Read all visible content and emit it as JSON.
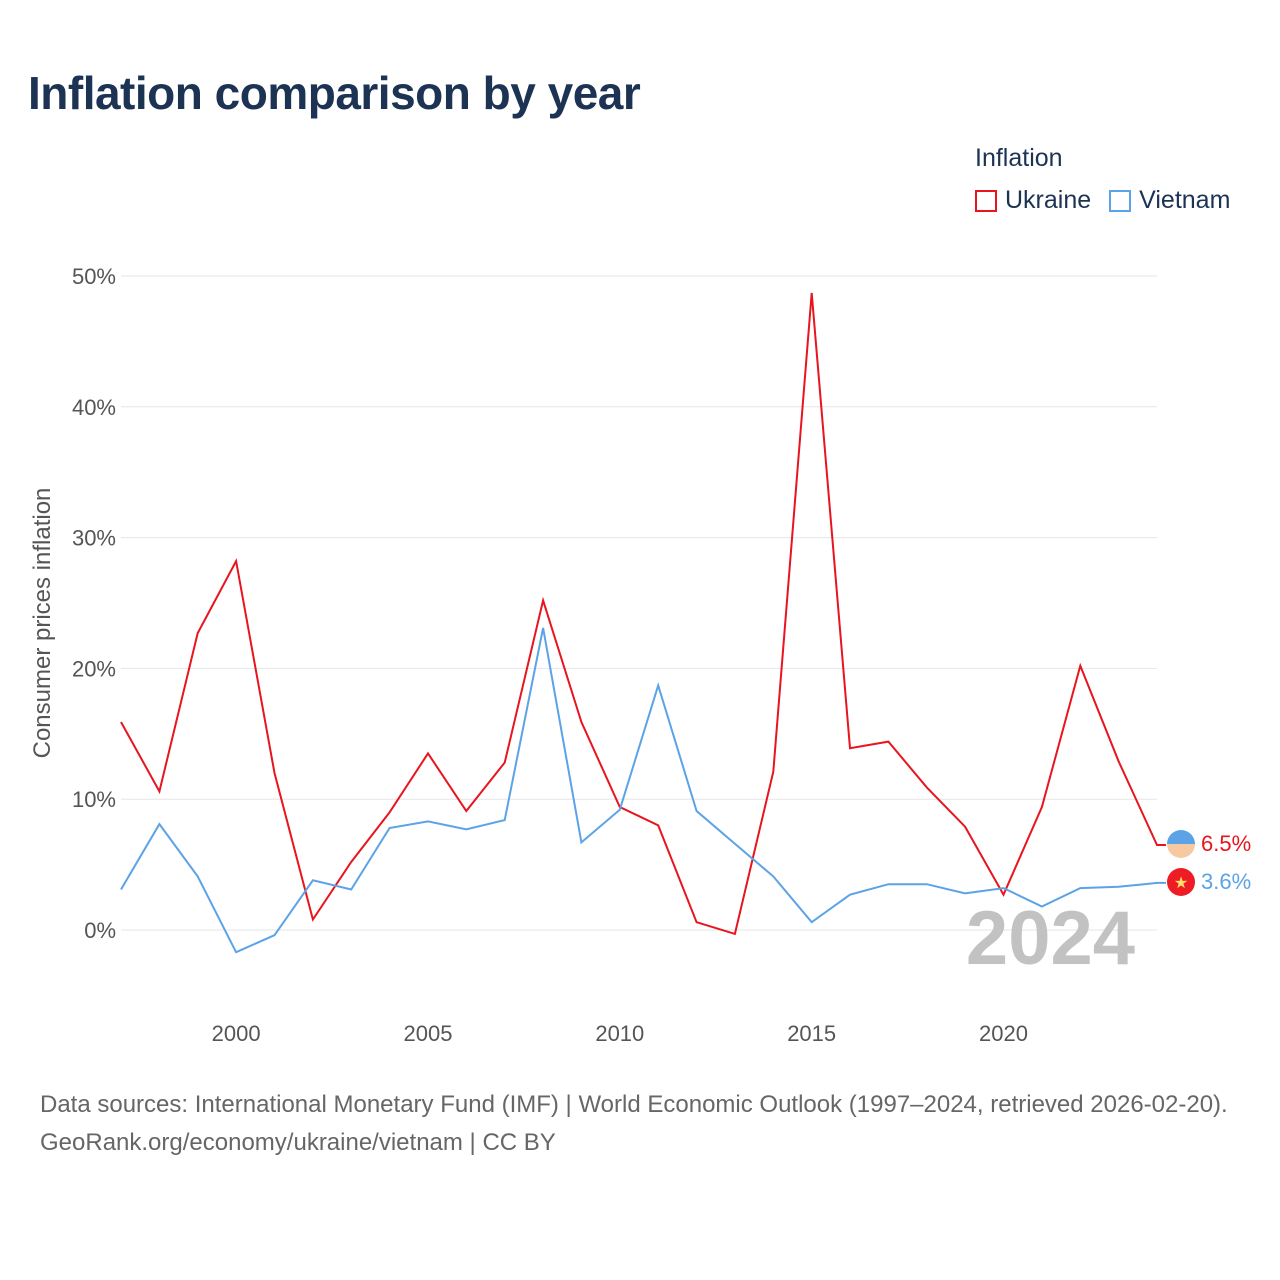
{
  "title": "Inflation comparison by year",
  "legend": {
    "title": "Inflation",
    "items": [
      {
        "label": "Ukraine",
        "color": "#e8141e"
      },
      {
        "label": "Vietnam",
        "color": "#5ba3e6"
      }
    ]
  },
  "chart_data": {
    "type": "line",
    "title": "Inflation comparison by year",
    "xlabel": "",
    "ylabel": "Consumer prices inflation",
    "xlim": [
      1997,
      2024
    ],
    "ylim": [
      -3,
      50
    ],
    "yticks": [
      0,
      10,
      20,
      30,
      40,
      50
    ],
    "ytick_labels": [
      "0%",
      "10%",
      "20%",
      "30%",
      "40%",
      "50%"
    ],
    "xticks": [
      2000,
      2005,
      2010,
      2015,
      2020
    ],
    "xtick_labels": [
      "2000",
      "2005",
      "2010",
      "2015",
      "2020"
    ],
    "grid": true,
    "x": [
      1997,
      1998,
      1999,
      2000,
      2001,
      2002,
      2003,
      2004,
      2005,
      2006,
      2007,
      2008,
      2009,
      2010,
      2011,
      2012,
      2013,
      2014,
      2015,
      2016,
      2017,
      2018,
      2019,
      2020,
      2021,
      2022,
      2023,
      2024
    ],
    "series": [
      {
        "name": "Ukraine",
        "color": "#e8141e",
        "values": [
          15.9,
          10.6,
          22.7,
          28.2,
          12.0,
          0.8,
          5.2,
          9.0,
          13.5,
          9.1,
          12.8,
          25.2,
          15.9,
          9.4,
          8.0,
          0.6,
          -0.3,
          12.1,
          48.7,
          13.9,
          14.4,
          10.9,
          7.9,
          2.7,
          9.4,
          20.2,
          12.9,
          6.5
        ],
        "end_label": "6.5%"
      },
      {
        "name": "Vietnam",
        "color": "#5ba3e6",
        "values": [
          3.1,
          8.1,
          4.1,
          -1.7,
          -0.4,
          3.8,
          3.1,
          7.8,
          8.3,
          7.7,
          8.4,
          23.1,
          6.7,
          9.2,
          18.7,
          9.1,
          6.6,
          4.1,
          0.6,
          2.7,
          3.5,
          3.5,
          2.8,
          3.2,
          1.8,
          3.2,
          3.3,
          3.6
        ],
        "end_label": "3.6%"
      }
    ],
    "year_watermark": "2024"
  },
  "source": {
    "line1": "Data sources: International Monetary Fund (IMF) | World Economic Outlook (1997–2024, retrieved 2026-02-20).",
    "line2": "GeoRank.org/economy/ukraine/vietnam | CC BY"
  }
}
